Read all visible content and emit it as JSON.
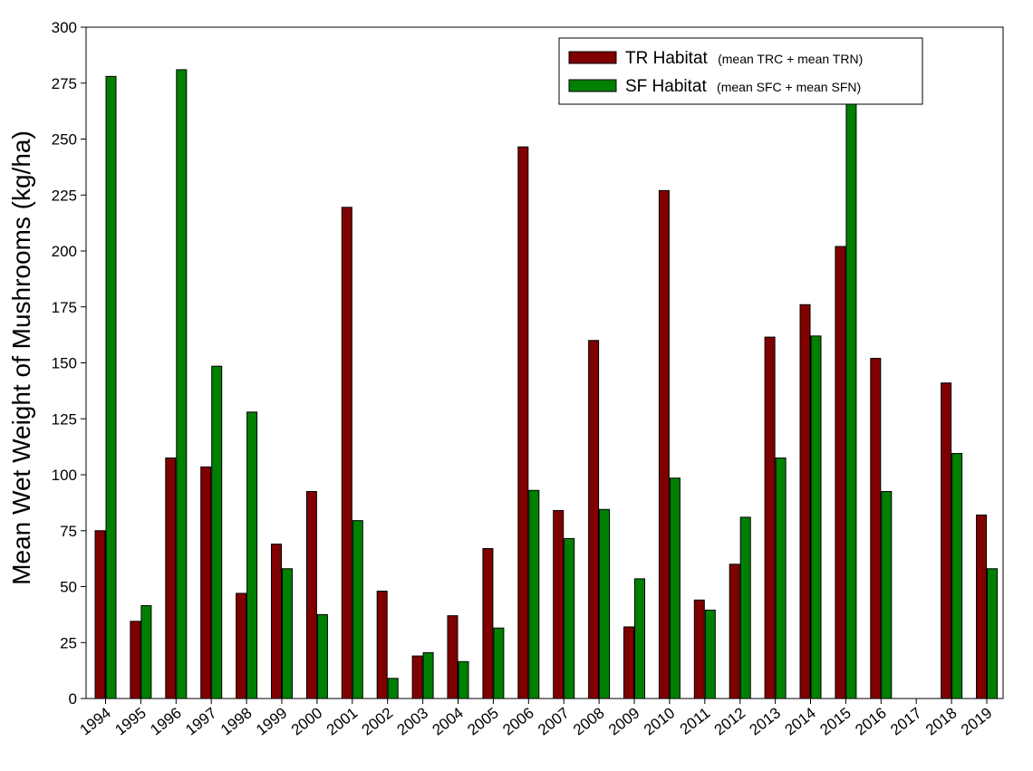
{
  "chart_data": {
    "type": "bar",
    "title": "",
    "xlabel": "",
    "ylabel": "Mean Wet Weight of Mushrooms (kg/ha)",
    "ylim": [
      0,
      300
    ],
    "yticks": [
      0,
      25,
      50,
      75,
      100,
      125,
      150,
      175,
      200,
      225,
      250,
      275,
      300
    ],
    "categories": [
      "1994",
      "1995",
      "1996",
      "1997",
      "1998",
      "1999",
      "2000",
      "2001",
      "2002",
      "2003",
      "2004",
      "2005",
      "2006",
      "2007",
      "2008",
      "2009",
      "2010",
      "2011",
      "2012",
      "2013",
      "2014",
      "2015",
      "2016",
      "2017",
      "2018",
      "2019"
    ],
    "grid": false,
    "legend_position": "top-right",
    "series": [
      {
        "name": "TR Habitat",
        "legend_note": "(mean TRC + mean TRN)",
        "color": "#800000",
        "values": [
          75,
          34.5,
          107.5,
          103.5,
          47,
          69,
          92.5,
          219.5,
          48,
          19,
          37,
          67,
          246.5,
          84,
          160,
          32,
          227,
          44,
          60,
          161.5,
          176,
          202,
          152,
          null,
          141,
          82
        ]
      },
      {
        "name": "SF Habitat",
        "legend_note": "(mean SFC + mean SFN)",
        "color": "#008000",
        "values": [
          278,
          41.5,
          281,
          148.5,
          128,
          58,
          37.5,
          79.5,
          9,
          20.5,
          16.5,
          31.5,
          93,
          71.5,
          84.5,
          53.5,
          98.5,
          39.5,
          81,
          107.5,
          162,
          266,
          92.5,
          null,
          109.5,
          58
        ]
      }
    ]
  }
}
